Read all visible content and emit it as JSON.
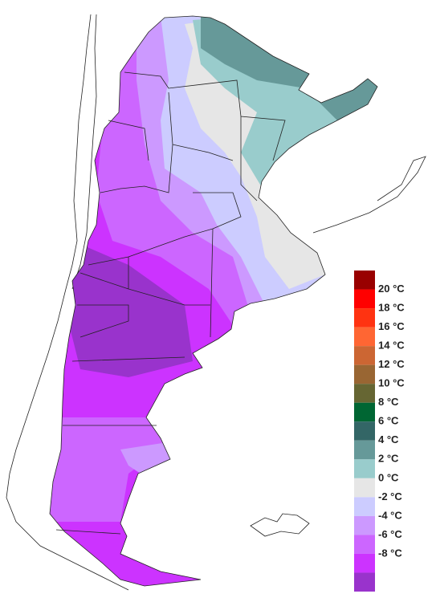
{
  "legend": {
    "labels": [
      "20 °C",
      "18 °C",
      "16 °C",
      "14 °C",
      "12 °C",
      "10 °C",
      "8 °C",
      "6 °C",
      "4 °C",
      "2 °C",
      "0 °C",
      "-2 °C",
      "-4 °C",
      "-6 °C",
      "-8 °C"
    ],
    "colors": [
      "#990000",
      "#ff0000",
      "#ff3311",
      "#ff6633",
      "#cc6633",
      "#996633",
      "#666633",
      "#006633",
      "#336666",
      "#669999",
      "#99cccc",
      "#e6e6e6",
      "#ccccff",
      "#cc99ff",
      "#cc66ff",
      "#cc33ff",
      "#9933cc"
    ]
  }
}
